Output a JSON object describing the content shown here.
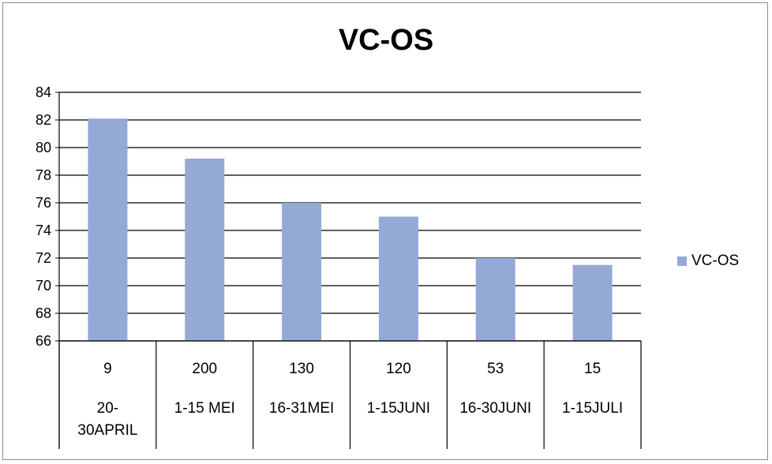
{
  "chart_data": {
    "type": "bar",
    "title": "VC-OS",
    "categories": [
      "20-30APRIL",
      "1-15 MEI",
      "16-31MEI",
      "1-15JUNI",
      "16-30JUNI",
      "1-15JULI"
    ],
    "category_counts": [
      "9",
      "200",
      "130",
      "120",
      "53",
      "15"
    ],
    "series": [
      {
        "name": "VC-OS",
        "values": [
          82.1,
          79.2,
          76.0,
          75.0,
          72.0,
          71.5
        ]
      }
    ],
    "ylim": [
      66,
      84
    ],
    "yticks": [
      "84",
      "82",
      "80",
      "78",
      "76",
      "74",
      "72",
      "70",
      "68",
      "66"
    ],
    "grid": true,
    "legend": "right",
    "colors": {
      "bar": "#95a9d6",
      "grid": "#000000"
    }
  }
}
